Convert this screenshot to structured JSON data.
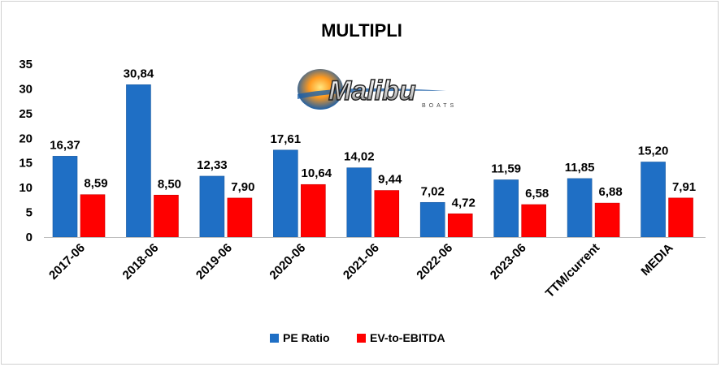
{
  "chart_data": {
    "type": "bar",
    "title": "MULTIPLI",
    "categories": [
      "2017-06",
      "2018-06",
      "2019-06",
      "2020-06",
      "2021-06",
      "2022-06",
      "2023-06",
      "TTM/current",
      "MEDIA"
    ],
    "series": [
      {
        "name": "PE Ratio",
        "color": "#1f6fc5",
        "values": [
          16.37,
          30.84,
          12.33,
          17.61,
          14.02,
          7.02,
          11.59,
          11.85,
          15.2
        ],
        "labels": [
          "16,37",
          "30,84",
          "12,33",
          "17,61",
          "14,02",
          "7,02",
          "11,59",
          "11,85",
          "15,20"
        ]
      },
      {
        "name": "EV-to-EBITDA",
        "color": "#ff0000",
        "values": [
          8.59,
          8.5,
          7.9,
          10.64,
          9.44,
          4.72,
          6.58,
          6.88,
          7.91
        ],
        "labels": [
          "8,59",
          "8,50",
          "7,90",
          "10,64",
          "9,44",
          "4,72",
          "6,58",
          "6,88",
          "7,91"
        ]
      }
    ],
    "ylim": [
      0,
      35
    ],
    "yticks": [
      "0",
      "5",
      "10",
      "15",
      "20",
      "25",
      "30",
      "35"
    ],
    "xlabel": "",
    "ylabel": "",
    "grid": false,
    "legend_position": "bottom",
    "logo": {
      "text": "Malibu",
      "subtext": "BOATS"
    }
  }
}
